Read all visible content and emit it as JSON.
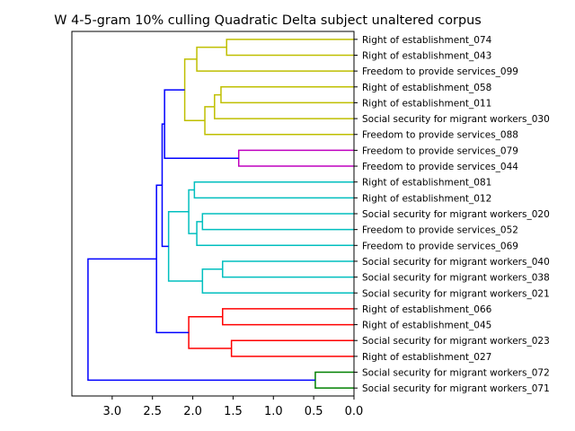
{
  "chart_data": {
    "type": "dendrogram",
    "orientation": "right",
    "title": "W 4-5-gram 10% culling Quadratic Delta subject unaltered corpus",
    "xlim": [
      3.5,
      0.0
    ],
    "xticks": [
      3.0,
      2.5,
      2.0,
      1.5,
      1.0,
      0.5,
      0.0
    ],
    "xtick_labels": [
      "3.0",
      "2.5",
      "2.0",
      "1.5",
      "1.0",
      "0.5",
      "0.0"
    ],
    "leaves": [
      "Right of establishment_074",
      "Right of establishment_043",
      "Freedom to provide services_099",
      "Right of establishment_058",
      "Right of establishment_011",
      "Social security for migrant workers_030",
      "Freedom to provide services_088",
      "Freedom to provide services_079",
      "Freedom to provide services_044",
      "Right of establishment_081",
      "Right of establishment_012",
      "Social security for migrant workers_020",
      "Freedom to provide services_052",
      "Freedom to provide services_069",
      "Social security for migrant workers_040",
      "Social security for migrant workers_038",
      "Social security for migrant workers_021",
      "Right of establishment_066",
      "Right of establishment_045",
      "Social security for migrant workers_023",
      "Right of establishment_027",
      "Social security for migrant workers_072",
      "Social security for migrant workers_071"
    ],
    "links": [
      {
        "a": 0,
        "b": 1,
        "h": 1.58,
        "c": "#bfbf00"
      },
      {
        "a": 23,
        "b": 2,
        "h": 1.95,
        "c": "#bfbf00"
      },
      {
        "a": 3,
        "b": 4,
        "h": 1.65,
        "c": "#bfbf00"
      },
      {
        "a": 25,
        "b": 5,
        "h": 1.73,
        "c": "#bfbf00"
      },
      {
        "a": 26,
        "b": 6,
        "h": 1.85,
        "c": "#bfbf00"
      },
      {
        "a": 24,
        "b": 27,
        "h": 2.1,
        "c": "#bfbf00"
      },
      {
        "a": 7,
        "b": 8,
        "h": 1.43,
        "c": "#bf00bf"
      },
      {
        "a": 28,
        "b": 29,
        "h": 2.35,
        "c": "#0000ff"
      },
      {
        "a": 9,
        "b": 10,
        "h": 1.98,
        "c": "#00bfbf"
      },
      {
        "a": 11,
        "b": 12,
        "h": 1.88,
        "c": "#00bfbf"
      },
      {
        "a": 32,
        "b": 13,
        "h": 1.95,
        "c": "#00bfbf"
      },
      {
        "a": 31,
        "b": 33,
        "h": 2.05,
        "c": "#00bfbf"
      },
      {
        "a": 14,
        "b": 15,
        "h": 1.63,
        "c": "#00bfbf"
      },
      {
        "a": 35,
        "b": 16,
        "h": 1.88,
        "c": "#00bfbf"
      },
      {
        "a": 34,
        "b": 36,
        "h": 2.3,
        "c": "#00bfbf"
      },
      {
        "a": 30,
        "b": 37,
        "h": 2.38,
        "c": "#0000ff"
      },
      {
        "a": 17,
        "b": 18,
        "h": 1.63,
        "c": "#ff0000"
      },
      {
        "a": 19,
        "b": 20,
        "h": 1.52,
        "c": "#ff0000"
      },
      {
        "a": 39,
        "b": 40,
        "h": 2.05,
        "c": "#ff0000"
      },
      {
        "a": 38,
        "b": 41,
        "h": 2.45,
        "c": "#0000ff"
      },
      {
        "a": 21,
        "b": 22,
        "h": 0.48,
        "c": "#008000"
      },
      {
        "a": 42,
        "b": 43,
        "h": 3.3,
        "c": "#0000ff"
      }
    ]
  }
}
